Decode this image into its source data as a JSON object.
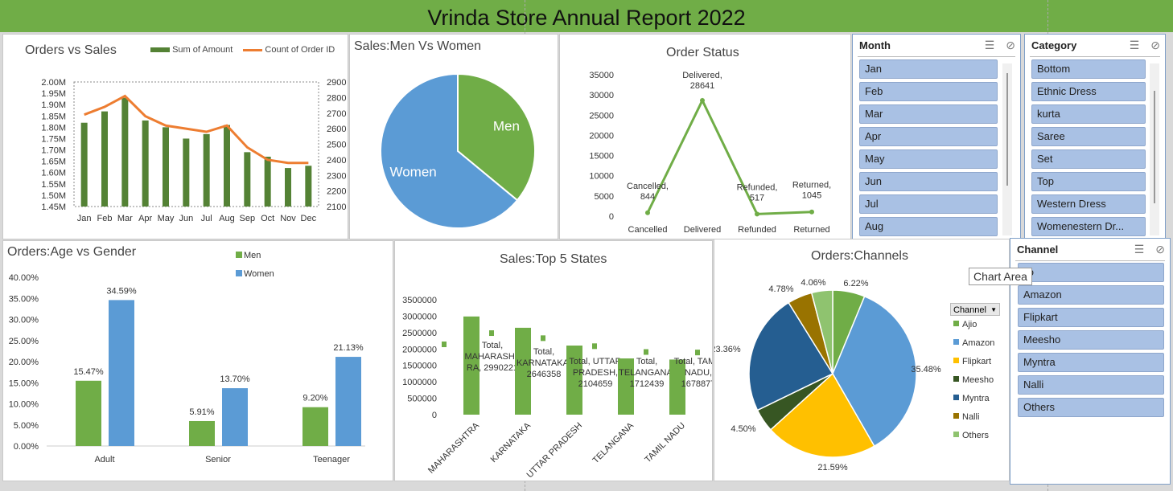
{
  "report_title": "Vrinda Store Annual Report 2022",
  "tooltip": "Chart Area",
  "orders_vs_sales": {
    "title": "Orders vs Sales",
    "legend_amount": "Sum of Amount",
    "legend_count": "Count of Order ID",
    "colors": {
      "bars": "#548235",
      "line": "#ed7d31"
    },
    "chart_data": {
      "type": "bar",
      "categories": [
        "Jan",
        "Feb",
        "Mar",
        "Apr",
        "May",
        "Jun",
        "Jul",
        "Aug",
        "Sep",
        "Oct",
        "Nov",
        "Dec"
      ],
      "series": [
        {
          "name": "Sum of Amount",
          "values": [
            1.82,
            1.87,
            1.93,
            1.83,
            1.8,
            1.75,
            1.77,
            1.81,
            1.69,
            1.67,
            1.62,
            1.63
          ],
          "unit": "M"
        },
        {
          "name": "Count of Order ID",
          "values": [
            2690,
            2740,
            2810,
            2680,
            2620,
            2600,
            2580,
            2620,
            2480,
            2400,
            2380,
            2380
          ]
        }
      ],
      "left_ticks": [
        "2.00M",
        "1.95M",
        "1.90M",
        "1.85M",
        "1.80M",
        "1.75M",
        "1.70M",
        "1.65M",
        "1.60M",
        "1.55M",
        "1.50M",
        "1.45M"
      ],
      "right_ticks": [
        "2900",
        "2800",
        "2700",
        "2600",
        "2500",
        "2400",
        "2300",
        "2200",
        "2100"
      ],
      "ylim": [
        1.45,
        2.0
      ],
      "y2lim": [
        2100,
        2900
      ]
    }
  },
  "men_vs_women": {
    "title": "Sales:Men Vs Women",
    "colors": {
      "Men": "#70ad47",
      "Women": "#5b9bd5"
    },
    "chart_data": {
      "type": "pie",
      "labels": [
        "Men",
        "Women"
      ],
      "values": [
        36,
        64
      ]
    }
  },
  "order_status": {
    "title": "Order Status",
    "color": "#70ad47",
    "chart_data": {
      "type": "line",
      "categories": [
        "Cancelled",
        "Delivered",
        "Refunded",
        "Returned"
      ],
      "values": [
        844,
        28641,
        517,
        1045
      ],
      "data_labels": [
        [
          "Cancelled,",
          "844"
        ],
        [
          "Delivered,",
          "28641"
        ],
        [
          "Refunded,",
          "517"
        ],
        [
          "Returned,",
          "1045"
        ]
      ],
      "y_ticks": [
        "35000",
        "30000",
        "25000",
        "20000",
        "15000",
        "10000",
        "5000",
        "0"
      ],
      "ylim": [
        0,
        35000
      ]
    }
  },
  "slicer_month": {
    "title": "Month",
    "items": [
      "Jan",
      "Feb",
      "Mar",
      "Apr",
      "May",
      "Jun",
      "Jul",
      "Aug"
    ]
  },
  "slicer_category": {
    "title": "Category",
    "items": [
      "Bottom",
      "Ethnic Dress",
      "kurta",
      "Saree",
      "Set",
      "Top",
      "Western Dress",
      "Womenestern Dr..."
    ]
  },
  "slicer_channel": {
    "title": "Channel",
    "items": [
      "jio",
      "Amazon",
      "Flipkart",
      "Meesho",
      "Myntra",
      "Nalli",
      "Others"
    ]
  },
  "age_gender": {
    "title": "Orders:Age vs Gender",
    "legend": [
      "Men",
      "Women"
    ],
    "colors": {
      "Men": "#70ad47",
      "Women": "#5b9bd5"
    },
    "chart_data": {
      "type": "bar",
      "categories": [
        "Adult",
        "Senior",
        "Teenager"
      ],
      "series": [
        {
          "name": "Men",
          "values": [
            15.47,
            5.91,
            9.2
          ],
          "labels": [
            "15.47%",
            "5.91%",
            "9.20%"
          ]
        },
        {
          "name": "Women",
          "values": [
            34.59,
            13.7,
            21.13
          ],
          "labels": [
            "34.59%",
            "13.70%",
            "21.13%"
          ]
        }
      ],
      "y_ticks": [
        "40.00%",
        "35.00%",
        "30.00%",
        "25.00%",
        "20.00%",
        "15.00%",
        "10.00%",
        "5.00%",
        "0.00%"
      ],
      "ylim": [
        0,
        40
      ]
    }
  },
  "top_states": {
    "title": "Sales:Top 5 States",
    "color": "#70ad47",
    "chart_data": {
      "type": "bar",
      "categories": [
        "MAHARASHTRA",
        "KARNATAKA",
        "UTTAR PRADESH",
        "TELANGANA",
        "TAMIL NADU"
      ],
      "values": [
        2990221,
        2646358,
        2104659,
        1712439,
        1678877
      ],
      "y_ticks": [
        "3500000",
        "3000000",
        "2500000",
        "2000000",
        "1500000",
        "1000000",
        "500000",
        "0"
      ],
      "ylim": [
        0,
        3500000
      ],
      "data_labels": [
        [
          "Total,",
          "MAHARASHT",
          "RA, 2990221"
        ],
        [
          "Total,",
          "KARNATAKA,",
          "2646358"
        ],
        [
          "Total, UTTAR",
          "PRADESH,",
          "2104659"
        ],
        [
          "Total,",
          "TELANGANA,",
          "1712439"
        ],
        [
          "Total, TAMIL",
          "NADU,",
          "1678877"
        ]
      ]
    }
  },
  "channels": {
    "title": "Orders:Channels",
    "filter_label": "Channel",
    "chart_data": {
      "type": "pie",
      "labels": [
        "Ajio",
        "Amazon",
        "Flipkart",
        "Meesho",
        "Myntra",
        "Nalli",
        "Others"
      ],
      "values": [
        6.22,
        35.48,
        21.59,
        4.5,
        23.36,
        4.78,
        4.06
      ],
      "data_labels": [
        "6.22%",
        "35.48%",
        "21.59%",
        "4.50%",
        "23.36%",
        "4.78%",
        "4.06%"
      ],
      "colors": [
        "#70ad47",
        "#5b9bd5",
        "#ffc000",
        "#375623",
        "#255e91",
        "#997300",
        "#8fc36f"
      ]
    }
  }
}
